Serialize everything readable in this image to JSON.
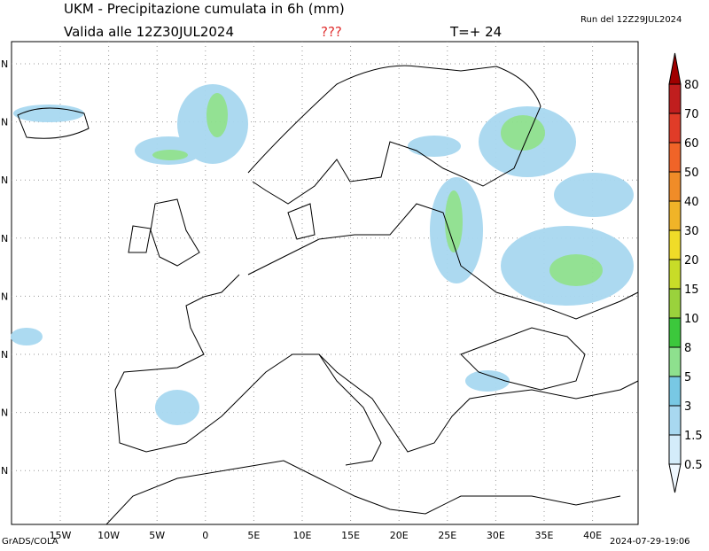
{
  "header": {
    "title": "UKM - Precipitazione cumulata in 6h (mm)",
    "run": "Run del 12Z29JUL2024",
    "valid": "Valida alle 12Z30JUL2024",
    "flag": "???",
    "step": "T=+ 24"
  },
  "map": {
    "lon_labels": [
      "15W",
      "10W",
      "5W",
      "0",
      "5E",
      "10E",
      "15E",
      "20E",
      "25E",
      "30E",
      "35E",
      "40E"
    ],
    "lat_labels": [
      "N",
      "N",
      "N",
      "N",
      "N",
      "N",
      "N",
      "N"
    ]
  },
  "colorbar": {
    "levels": [
      "0.5",
      "1.5",
      "3",
      "5",
      "8",
      "10",
      "15",
      "20",
      "30",
      "40",
      "50",
      "60",
      "70",
      "80"
    ],
    "colors": [
      "#f0f8ff",
      "#d4ecfa",
      "#a8d8f0",
      "#78c8e4",
      "#8ee08e",
      "#3cc83c",
      "#9ad23c",
      "#c8dc28",
      "#f0dc28",
      "#f0b428",
      "#f08c28",
      "#f06428",
      "#e03c28",
      "#c01e1e",
      "#a00000"
    ]
  },
  "footer": {
    "left": "GrADS/COLA",
    "right": "2024-07-29-19:06"
  }
}
